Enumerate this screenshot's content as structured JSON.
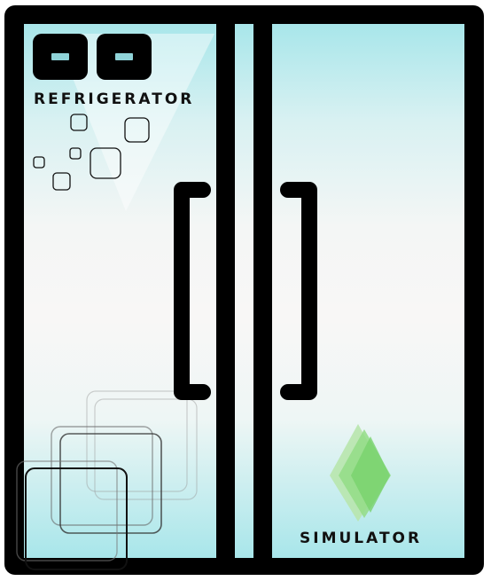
{
  "app": {
    "brand_top": "REFRIGERATOR",
    "brand_bottom": "SIMULATOR"
  },
  "colors": {
    "frame": "#000000",
    "glass_top": "#a8e6ea",
    "glass_mid": "#f8f7f6",
    "display_slot": "#8fd3d8",
    "logo_green": "#7fd67a"
  },
  "icons": {
    "display_left": "control-display",
    "display_right": "control-display",
    "logo": "green-diamond-logo"
  }
}
